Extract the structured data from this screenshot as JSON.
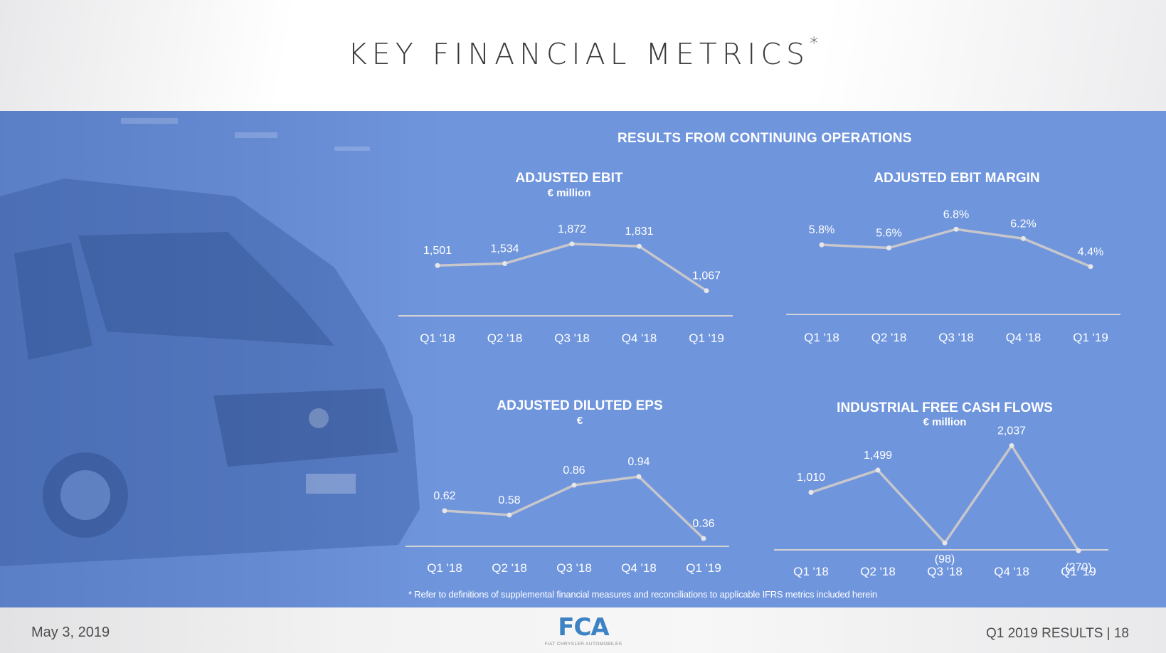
{
  "page": {
    "title": "KEY FINANCIAL METRICS",
    "title_mark": "*",
    "section_heading": "RESULTS FROM CONTINUING OPERATIONS",
    "footnote": "* Refer to definitions of supplemental financial measures and reconciliations to applicable IFRS metrics included herein",
    "date": "May 3, 2019",
    "page_info": "Q1 2019 RESULTS | 18",
    "logo_text": "FCA",
    "logo_subtext": "FIAT CHRYSLER AUTOMOBILES"
  },
  "colors": {
    "panel": "#6f95dd",
    "line": "#c7c7cb",
    "axis": "#d3d3d6",
    "text": "#ffffff"
  },
  "chart_data": [
    {
      "type": "line",
      "title": "ADJUSTED EBIT",
      "unit": "€ million",
      "categories": [
        "Q1 '18",
        "Q2 '18",
        "Q3 '18",
        "Q4 '18",
        "Q1 '19"
      ],
      "values": [
        1501,
        1534,
        1872,
        1831,
        1067
      ],
      "data_labels": [
        "1,501",
        "1,534",
        "1,872",
        "1,831",
        "1,067"
      ],
      "ylim": [
        0,
        2200
      ],
      "grid": false
    },
    {
      "type": "line",
      "title": "ADJUSTED EBIT MARGIN",
      "unit": "",
      "categories": [
        "Q1 '18",
        "Q2 '18",
        "Q3 '18",
        "Q4 '18",
        "Q1 '19"
      ],
      "values": [
        5.8,
        5.6,
        6.8,
        6.2,
        4.4
      ],
      "data_labels": [
        "5.8%",
        "5.6%",
        "6.8%",
        "6.2%",
        "4.4%"
      ],
      "ylim": [
        0,
        8
      ],
      "grid": false
    },
    {
      "type": "line",
      "title": "ADJUSTED DILUTED EPS",
      "unit": "€",
      "categories": [
        "Q1 '18",
        "Q2 '18",
        "Q3 '18",
        "Q4 '18",
        "Q1 '19"
      ],
      "values": [
        0.62,
        0.58,
        0.86,
        0.94,
        0.36
      ],
      "data_labels": [
        "0.62",
        "0.58",
        "0.86",
        "0.94",
        "0.36"
      ],
      "ylim": [
        0,
        1.1
      ],
      "grid": false
    },
    {
      "type": "line",
      "title": "INDUSTRIAL FREE CASH FLOWS",
      "unit": "€ million",
      "categories": [
        "Q1 '18",
        "Q2 '18",
        "Q3 '18",
        "Q4 '18",
        "Q1 '19"
      ],
      "values": [
        1010,
        1499,
        -98,
        2037,
        -270
      ],
      "data_labels": [
        "1,010",
        "1,499",
        "(98)",
        "2,037",
        "(270)"
      ],
      "ylim": [
        -500,
        2200
      ],
      "grid": false
    }
  ]
}
